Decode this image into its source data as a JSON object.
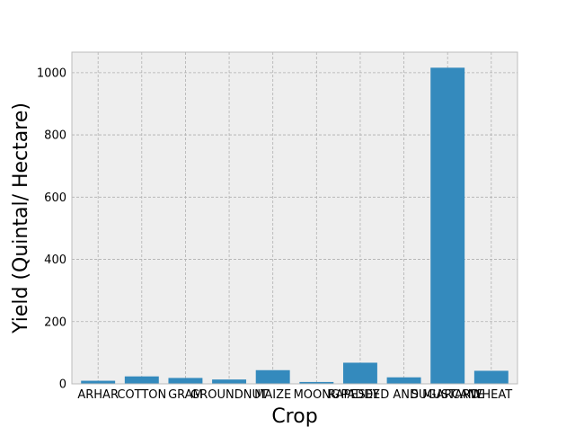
{
  "chart_data": {
    "type": "bar",
    "title": "",
    "xlabel": "Crop",
    "ylabel": "Yield (Quintal/ Hectare)",
    "categories": [
      "ARHAR",
      "COTTON",
      "GRAM",
      "GROUNDNUT",
      "MAIZE",
      "MOONG",
      "PADDY",
      "RAPESEED AND MUSTARD",
      "SUGARCANE",
      "WHEAT"
    ],
    "values": [
      10,
      24,
      19,
      14,
      44,
      6,
      68,
      21,
      1016,
      42
    ],
    "ylim": [
      0,
      1066
    ],
    "yticks": [
      0,
      200,
      400,
      600,
      800,
      1000
    ],
    "grid": true,
    "colors": {
      "bar": "#348abd",
      "background": "#eeeeee"
    }
  }
}
